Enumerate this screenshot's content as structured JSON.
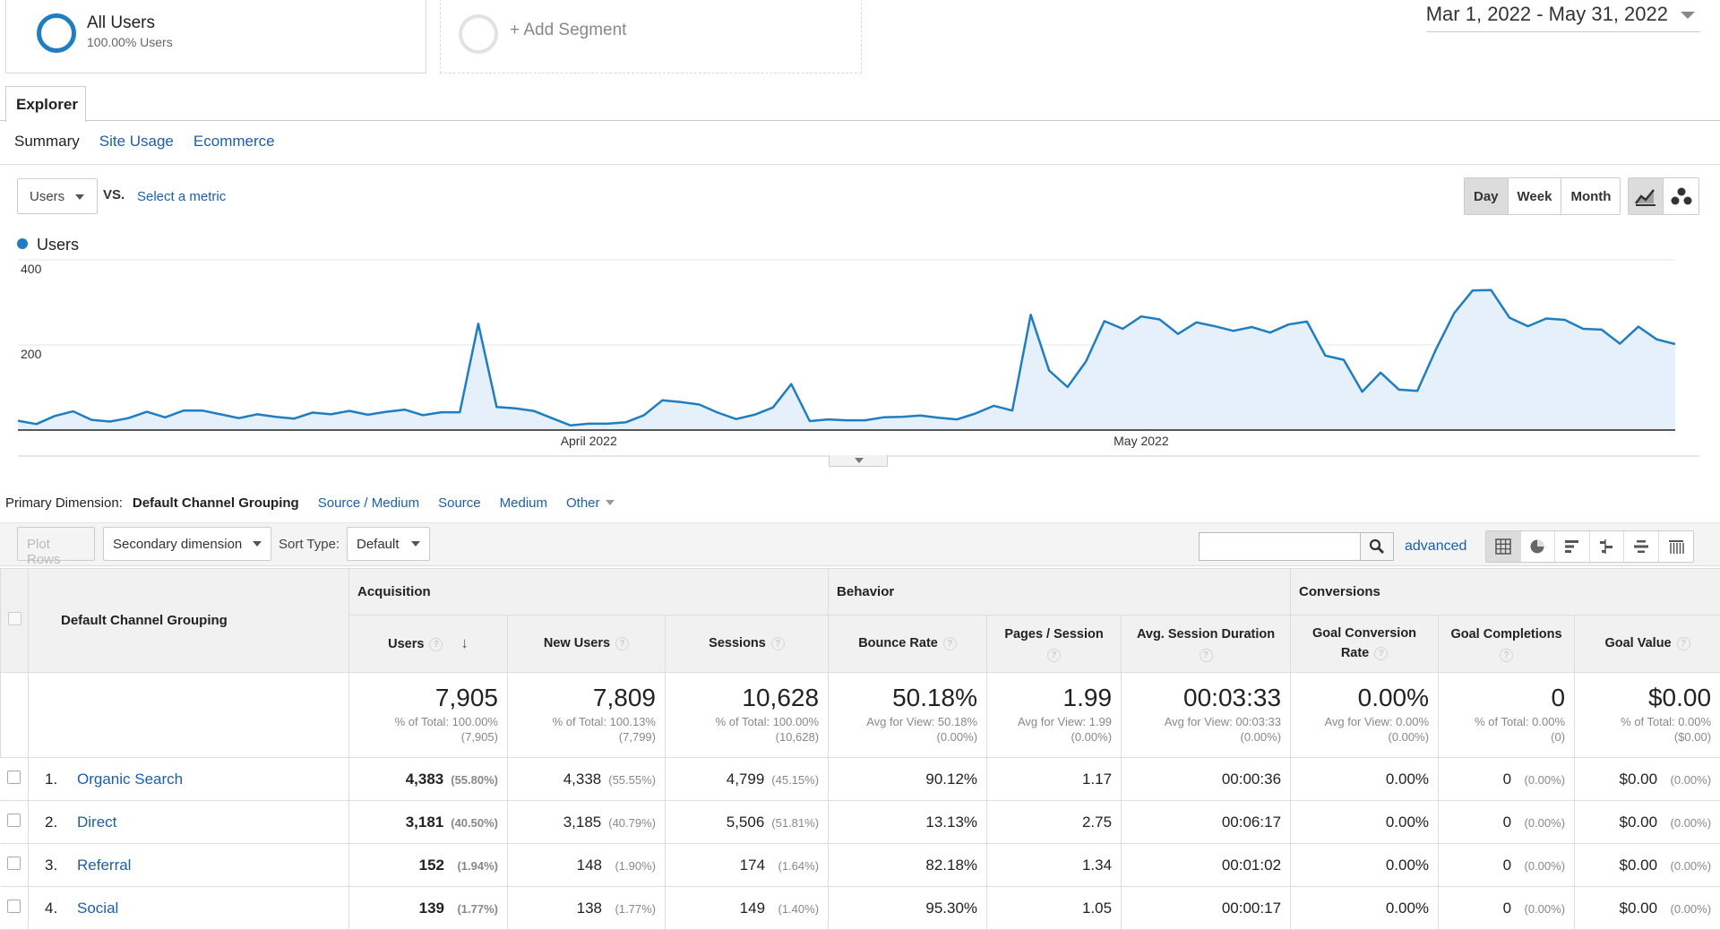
{
  "segments": {
    "active": {
      "title": "All Users",
      "subtitle": "100.00% Users"
    },
    "add_label": "+ Add Segment"
  },
  "date_range": "Mar 1, 2022 - May 31, 2022",
  "tabs": {
    "explorer": "Explorer"
  },
  "subtabs": [
    {
      "label": "Summary",
      "active": true
    },
    {
      "label": "Site Usage",
      "active": false
    },
    {
      "label": "Ecommerce",
      "active": false
    }
  ],
  "metric_row": {
    "metric": "Users",
    "vs": "VS.",
    "select_metric": "Select a metric",
    "periods": [
      "Day",
      "Week",
      "Month"
    ],
    "active_period": "Day"
  },
  "chart_data": {
    "type": "area",
    "series": [
      {
        "name": "Users",
        "color": "#1f7ec2",
        "values": [
          22,
          14,
          33,
          44,
          24,
          20,
          28,
          43,
          30,
          46,
          46,
          37,
          28,
          37,
          31,
          27,
          41,
          37,
          45,
          36,
          43,
          48,
          35,
          42,
          42,
          250,
          54,
          51,
          45,
          28,
          11,
          15,
          15,
          18,
          35,
          70,
          66,
          60,
          41,
          26,
          36,
          53,
          108,
          21,
          25,
          23,
          23,
          30,
          31,
          34,
          29,
          25,
          39,
          57,
          46,
          271,
          140,
          101,
          161,
          256,
          238,
          267,
          260,
          226,
          253,
          244,
          233,
          242,
          229,
          248,
          255,
          175,
          165,
          90,
          135,
          95,
          92,
          189,
          275,
          328,
          329,
          264,
          244,
          262,
          259,
          238,
          236,
          203,
          243,
          213,
          202
        ]
      }
    ],
    "ylim": [
      0,
      400
    ],
    "yticks": [
      "400",
      "200"
    ],
    "xticks": [
      {
        "label": "April 2022",
        "index": 31
      },
      {
        "label": "May 2022",
        "index": 61
      }
    ],
    "grid": true
  },
  "primary_dimension": {
    "label": "Primary Dimension:",
    "current": "Default Channel Grouping",
    "options": [
      "Source / Medium",
      "Source",
      "Medium"
    ],
    "other": "Other"
  },
  "toolbar": {
    "plot_rows": "Plot Rows",
    "secondary_dimension": "Secondary dimension",
    "sort_label": "Sort Type:",
    "sort_value": "Default",
    "search_placeholder": "",
    "advanced": "advanced"
  },
  "table": {
    "dimension_header": "Default Channel Grouping",
    "groups": {
      "acquisition": "Acquisition",
      "behavior": "Behavior",
      "conversions": "Conversions"
    },
    "columns": {
      "users": "Users",
      "new_users": "New Users",
      "sessions": "Sessions",
      "bounce_rate": "Bounce Rate",
      "pages_session": "Pages / Session",
      "avg_duration": "Avg. Session Duration",
      "goal_rate_1": "Goal Conversion",
      "goal_rate_2": "Rate",
      "goal_completions": "Goal Completions",
      "goal_value": "Goal Value"
    },
    "totals": {
      "users": {
        "value": "7,905",
        "sub1": "% of Total: 100.00%",
        "sub2": "(7,905)"
      },
      "new_users": {
        "value": "7,809",
        "sub1": "% of Total: 100.13%",
        "sub2": "(7,799)"
      },
      "sessions": {
        "value": "10,628",
        "sub1": "% of Total: 100.00%",
        "sub2": "(10,628)"
      },
      "bounce_rate": {
        "value": "50.18%",
        "sub1": "Avg for View: 50.18%",
        "sub2": "(0.00%)"
      },
      "pages_session": {
        "value": "1.99",
        "sub1": "Avg for View: 1.99",
        "sub2": "(0.00%)"
      },
      "avg_duration": {
        "value": "00:03:33",
        "sub1": "Avg for View: 00:03:33",
        "sub2": "(0.00%)"
      },
      "goal_rate": {
        "value": "0.00%",
        "sub1": "Avg for View: 0.00%",
        "sub2": "(0.00%)"
      },
      "goal_completions": {
        "value": "0",
        "sub1": "% of Total: 0.00%",
        "sub2": "(0)"
      },
      "goal_value": {
        "value": "$0.00",
        "sub1": "% of Total: 0.00%",
        "sub2": "($0.00)"
      }
    },
    "rows": [
      {
        "num": "1.",
        "name": "Organic Search",
        "users": "4,383",
        "users_pct": "(55.80%)",
        "new_users": "4,338",
        "new_users_pct": "(55.55%)",
        "sessions": "4,799",
        "sessions_pct": "(45.15%)",
        "bounce": "90.12%",
        "pages": "1.17",
        "duration": "00:00:36",
        "goal_rate": "0.00%",
        "goal_comp": "0",
        "goal_comp_pct": "(0.00%)",
        "goal_value": "$0.00",
        "goal_value_pct": "(0.00%)"
      },
      {
        "num": "2.",
        "name": "Direct",
        "users": "3,181",
        "users_pct": "(40.50%)",
        "new_users": "3,185",
        "new_users_pct": "(40.79%)",
        "sessions": "5,506",
        "sessions_pct": "(51.81%)",
        "bounce": "13.13%",
        "pages": "2.75",
        "duration": "00:06:17",
        "goal_rate": "0.00%",
        "goal_comp": "0",
        "goal_comp_pct": "(0.00%)",
        "goal_value": "$0.00",
        "goal_value_pct": "(0.00%)"
      },
      {
        "num": "3.",
        "name": "Referral",
        "users": "152",
        "users_pct": "(1.94%)",
        "new_users": "148",
        "new_users_pct": "(1.90%)",
        "sessions": "174",
        "sessions_pct": "(1.64%)",
        "bounce": "82.18%",
        "pages": "1.34",
        "duration": "00:01:02",
        "goal_rate": "0.00%",
        "goal_comp": "0",
        "goal_comp_pct": "(0.00%)",
        "goal_value": "$0.00",
        "goal_value_pct": "(0.00%)"
      },
      {
        "num": "4.",
        "name": "Social",
        "users": "139",
        "users_pct": "(1.77%)",
        "new_users": "138",
        "new_users_pct": "(1.77%)",
        "sessions": "149",
        "sessions_pct": "(1.40%)",
        "bounce": "95.30%",
        "pages": "1.05",
        "duration": "00:00:17",
        "goal_rate": "0.00%",
        "goal_comp": "0",
        "goal_comp_pct": "(0.00%)",
        "goal_value": "$0.00",
        "goal_value_pct": "(0.00%)"
      }
    ]
  },
  "icons": {
    "search": "search-icon",
    "line_chart": "line-chart-icon",
    "motion_chart": "motion-chart-icon",
    "views": [
      "data-table-icon",
      "pie-chart-icon",
      "performance-icon",
      "comparison-icon",
      "term-cloud-icon",
      "pivot-icon"
    ]
  }
}
